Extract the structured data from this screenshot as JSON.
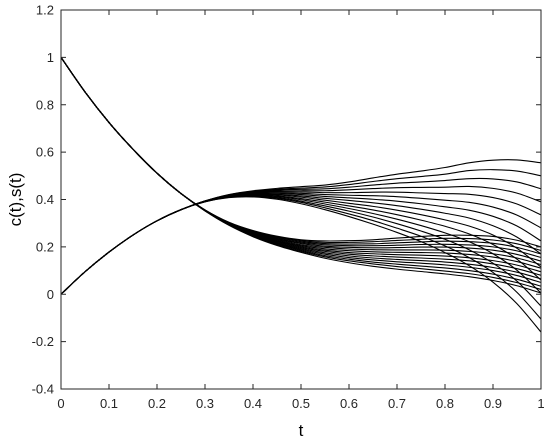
{
  "chart_data": {
    "type": "line",
    "title": "",
    "xlabel": "t",
    "ylabel": "c(t),s(t)",
    "xlim": [
      0,
      1
    ],
    "ylim": [
      -0.4,
      1.2
    ],
    "grid": false,
    "legend": "none",
    "line_color": "#000000",
    "xticks": [
      0,
      0.1,
      0.2,
      0.3,
      0.4,
      0.5,
      0.6,
      0.7,
      0.8,
      0.9,
      1
    ],
    "xtick_labels": [
      "0",
      "0.1",
      "0.2",
      "0.3",
      "0.4",
      "0.5",
      "0.6",
      "0.7",
      "0.8",
      "0.9",
      "1"
    ],
    "yticks": [
      -0.4,
      -0.2,
      0,
      0.2,
      0.4,
      0.6,
      0.8,
      1,
      1.2
    ],
    "ytick_labels": [
      "-0.4",
      "-0.2",
      "0",
      "0.2",
      "0.4",
      "0.6",
      "0.8",
      "1",
      "1.2"
    ],
    "x": [
      0,
      0.05,
      0.1,
      0.15,
      0.2,
      0.25,
      0.3,
      0.35,
      0.4,
      0.45,
      0.5,
      0.55,
      0.6,
      0.65,
      0.7,
      0.75,
      0.8,
      0.85,
      0.9,
      0.95,
      1
    ],
    "series": [
      {
        "values": [
          1,
          0.854,
          0.725,
          0.612,
          0.511,
          0.425,
          0.352,
          0.291,
          0.243,
          0.206,
          0.177,
          0.152,
          0.133,
          0.118,
          0.106,
          0.096,
          0.086,
          0.074,
          0.058,
          0.036,
          0.005
        ]
      },
      {
        "values": [
          1,
          0.854,
          0.725,
          0.612,
          0.511,
          0.425,
          0.352,
          0.292,
          0.245,
          0.209,
          0.181,
          0.158,
          0.141,
          0.128,
          0.117,
          0.108,
          0.098,
          0.087,
          0.071,
          0.049,
          0.02
        ]
      },
      {
        "values": [
          1,
          0.854,
          0.725,
          0.612,
          0.511,
          0.425,
          0.353,
          0.293,
          0.247,
          0.212,
          0.185,
          0.163,
          0.148,
          0.136,
          0.127,
          0.119,
          0.111,
          0.1,
          0.085,
          0.063,
          0.034
        ]
      },
      {
        "values": [
          1,
          0.854,
          0.725,
          0.612,
          0.511,
          0.425,
          0.353,
          0.294,
          0.249,
          0.215,
          0.189,
          0.169,
          0.155,
          0.145,
          0.137,
          0.131,
          0.124,
          0.114,
          0.1,
          0.079,
          0.05
        ]
      },
      {
        "values": [
          1,
          0.854,
          0.725,
          0.612,
          0.511,
          0.425,
          0.353,
          0.295,
          0.251,
          0.218,
          0.193,
          0.175,
          0.162,
          0.153,
          0.147,
          0.142,
          0.136,
          0.127,
          0.113,
          0.093,
          0.065
        ]
      },
      {
        "values": [
          1,
          0.854,
          0.725,
          0.612,
          0.511,
          0.425,
          0.354,
          0.296,
          0.253,
          0.221,
          0.197,
          0.181,
          0.169,
          0.162,
          0.157,
          0.153,
          0.148,
          0.141,
          0.128,
          0.108,
          0.08
        ]
      },
      {
        "values": [
          1,
          0.854,
          0.725,
          0.612,
          0.511,
          0.425,
          0.354,
          0.297,
          0.255,
          0.224,
          0.201,
          0.186,
          0.176,
          0.171,
          0.167,
          0.165,
          0.161,
          0.154,
          0.142,
          0.123,
          0.095
        ]
      },
      {
        "values": [
          1,
          0.854,
          0.725,
          0.612,
          0.511,
          0.425,
          0.354,
          0.298,
          0.257,
          0.227,
          0.205,
          0.192,
          0.184,
          0.179,
          0.177,
          0.176,
          0.174,
          0.168,
          0.157,
          0.138,
          0.11
        ]
      },
      {
        "values": [
          1,
          0.854,
          0.725,
          0.612,
          0.511,
          0.425,
          0.355,
          0.299,
          0.259,
          0.23,
          0.209,
          0.198,
          0.191,
          0.188,
          0.187,
          0.187,
          0.186,
          0.181,
          0.171,
          0.153,
          0.125
        ]
      },
      {
        "values": [
          1,
          0.854,
          0.725,
          0.612,
          0.511,
          0.425,
          0.355,
          0.3,
          0.261,
          0.233,
          0.214,
          0.203,
          0.198,
          0.196,
          0.197,
          0.199,
          0.199,
          0.195,
          0.186,
          0.168,
          0.14
        ]
      },
      {
        "values": [
          1,
          0.854,
          0.725,
          0.612,
          0.511,
          0.425,
          0.355,
          0.301,
          0.263,
          0.236,
          0.218,
          0.209,
          0.205,
          0.205,
          0.207,
          0.21,
          0.211,
          0.208,
          0.2,
          0.183,
          0.155
        ]
      },
      {
        "values": [
          1,
          0.854,
          0.725,
          0.612,
          0.511,
          0.425,
          0.356,
          0.302,
          0.265,
          0.239,
          0.222,
          0.214,
          0.212,
          0.213,
          0.217,
          0.221,
          0.224,
          0.222,
          0.215,
          0.198,
          0.17
        ]
      },
      {
        "values": [
          1,
          0.854,
          0.725,
          0.612,
          0.511,
          0.425,
          0.356,
          0.303,
          0.267,
          0.242,
          0.226,
          0.219,
          0.219,
          0.222,
          0.227,
          0.232,
          0.236,
          0.235,
          0.229,
          0.213,
          0.185
        ]
      },
      {
        "values": [
          1,
          0.854,
          0.725,
          0.612,
          0.511,
          0.425,
          0.356,
          0.304,
          0.269,
          0.245,
          0.23,
          0.225,
          0.226,
          0.23,
          0.237,
          0.244,
          0.249,
          0.249,
          0.244,
          0.228,
          0.2
        ]
      },
      {
        "values": [
          0,
          0.095,
          0.178,
          0.25,
          0.31,
          0.357,
          0.39,
          0.408,
          0.411,
          0.401,
          0.382,
          0.357,
          0.328,
          0.296,
          0.261,
          0.222,
          0.176,
          0.121,
          0.051,
          -0.04,
          -0.16
        ]
      },
      {
        "values": [
          0,
          0.095,
          0.178,
          0.25,
          0.31,
          0.357,
          0.39,
          0.409,
          0.413,
          0.405,
          0.388,
          0.365,
          0.339,
          0.311,
          0.279,
          0.245,
          0.204,
          0.155,
          0.092,
          0.008,
          -0.105
        ]
      },
      {
        "values": [
          0,
          0.095,
          0.178,
          0.25,
          0.31,
          0.357,
          0.391,
          0.41,
          0.415,
          0.408,
          0.393,
          0.373,
          0.351,
          0.326,
          0.298,
          0.267,
          0.232,
          0.188,
          0.131,
          0.055,
          -0.05
        ]
      },
      {
        "values": [
          0,
          0.095,
          0.178,
          0.25,
          0.31,
          0.357,
          0.391,
          0.411,
          0.417,
          0.412,
          0.399,
          0.381,
          0.362,
          0.341,
          0.317,
          0.29,
          0.259,
          0.222,
          0.171,
          0.101,
          0.005
        ]
      },
      {
        "values": [
          0,
          0.095,
          0.178,
          0.25,
          0.31,
          0.357,
          0.391,
          0.412,
          0.419,
          0.415,
          0.404,
          0.389,
          0.373,
          0.356,
          0.336,
          0.313,
          0.287,
          0.255,
          0.21,
          0.148,
          0.06
        ]
      },
      {
        "values": [
          0,
          0.095,
          0.178,
          0.25,
          0.31,
          0.357,
          0.392,
          0.413,
          0.421,
          0.419,
          0.41,
          0.397,
          0.384,
          0.371,
          0.355,
          0.336,
          0.314,
          0.288,
          0.25,
          0.194,
          0.115
        ]
      },
      {
        "values": [
          0,
          0.095,
          0.178,
          0.25,
          0.31,
          0.357,
          0.392,
          0.414,
          0.423,
          0.422,
          0.415,
          0.405,
          0.396,
          0.386,
          0.374,
          0.359,
          0.342,
          0.322,
          0.289,
          0.241,
          0.17
        ]
      },
      {
        "values": [
          0,
          0.095,
          0.178,
          0.25,
          0.31,
          0.357,
          0.392,
          0.415,
          0.425,
          0.426,
          0.421,
          0.413,
          0.407,
          0.401,
          0.393,
          0.382,
          0.369,
          0.355,
          0.329,
          0.288,
          0.225
        ]
      },
      {
        "values": [
          0,
          0.095,
          0.178,
          0.25,
          0.31,
          0.357,
          0.393,
          0.416,
          0.427,
          0.429,
          0.426,
          0.421,
          0.418,
          0.416,
          0.412,
          0.405,
          0.397,
          0.388,
          0.368,
          0.334,
          0.28
        ]
      },
      {
        "values": [
          0,
          0.095,
          0.178,
          0.25,
          0.31,
          0.357,
          0.393,
          0.417,
          0.429,
          0.433,
          0.432,
          0.429,
          0.429,
          0.431,
          0.431,
          0.428,
          0.425,
          0.422,
          0.408,
          0.381,
          0.335
        ]
      },
      {
        "values": [
          0,
          0.095,
          0.178,
          0.25,
          0.31,
          0.357,
          0.393,
          0.418,
          0.431,
          0.436,
          0.437,
          0.437,
          0.441,
          0.446,
          0.45,
          0.451,
          0.452,
          0.455,
          0.447,
          0.427,
          0.39
        ]
      },
      {
        "values": [
          0,
          0.095,
          0.178,
          0.25,
          0.31,
          0.357,
          0.394,
          0.419,
          0.433,
          0.44,
          0.443,
          0.445,
          0.452,
          0.461,
          0.469,
          0.474,
          0.48,
          0.488,
          0.487,
          0.474,
          0.445
        ]
      },
      {
        "values": [
          0,
          0.095,
          0.178,
          0.25,
          0.31,
          0.357,
          0.394,
          0.42,
          0.435,
          0.443,
          0.448,
          0.453,
          0.463,
          0.476,
          0.488,
          0.497,
          0.507,
          0.522,
          0.526,
          0.52,
          0.5
        ]
      },
      {
        "values": [
          0,
          0.095,
          0.178,
          0.25,
          0.31,
          0.357,
          0.394,
          0.421,
          0.437,
          0.447,
          0.454,
          0.461,
          0.474,
          0.491,
          0.507,
          0.52,
          0.535,
          0.555,
          0.566,
          0.567,
          0.555
        ]
      }
    ]
  }
}
